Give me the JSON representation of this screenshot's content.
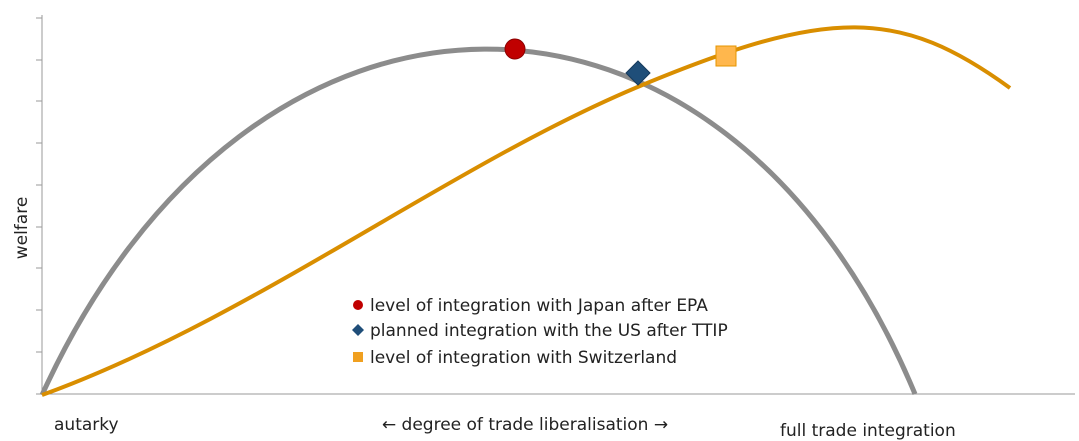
{
  "axes": {
    "y_label": "welfare",
    "x_left": "autarky",
    "x_center": "← degree of trade liberalisation →",
    "x_right": "full trade integration"
  },
  "legend": [
    "level of integration with Japan after EPA",
    "planned integration with the US after  TTIP",
    "level of integration with Switzerland"
  ]
}
